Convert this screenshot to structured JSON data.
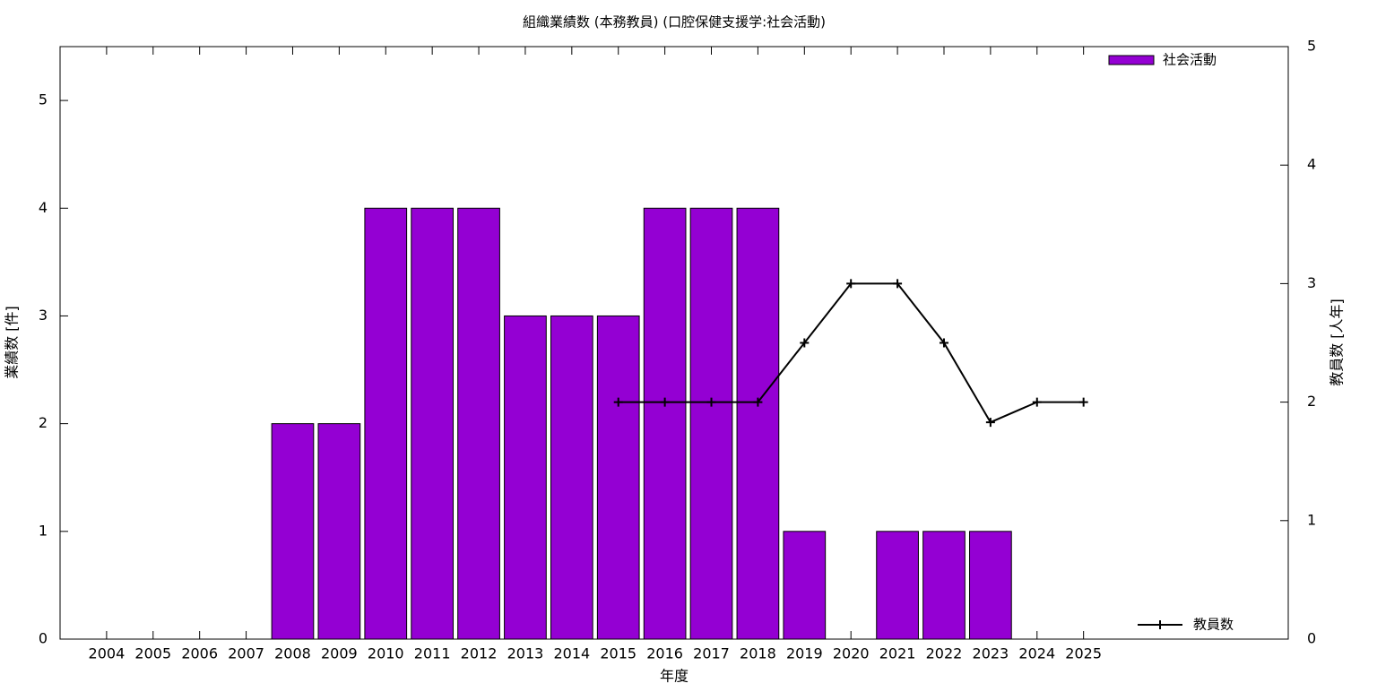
{
  "chart_data": {
    "type": "bar",
    "title": "組織業績数 (本務教員) (口腔保健支援学:社会活動)",
    "xlabel": "年度",
    "ylabel": "業績数 [件]",
    "y2label": "教員数 [人年]",
    "categories": [
      "2004",
      "2005",
      "2006",
      "2007",
      "2008",
      "2009",
      "2010",
      "2011",
      "2012",
      "2013",
      "2014",
      "2015",
      "2016",
      "2017",
      "2018",
      "2019",
      "2020",
      "2021",
      "2022",
      "2023",
      "2024",
      "2025"
    ],
    "series": [
      {
        "name": "社会活動",
        "type": "bar",
        "color": "#9400d3",
        "values": [
          0,
          0,
          0,
          0,
          2,
          2,
          4,
          4,
          4,
          3,
          3,
          3,
          4,
          4,
          4,
          1,
          0,
          1,
          1,
          1,
          0,
          0
        ]
      },
      {
        "name": "教員数",
        "type": "line",
        "axis": "y2",
        "color": "#000000",
        "values": [
          null,
          null,
          null,
          null,
          null,
          null,
          null,
          null,
          null,
          null,
          null,
          2,
          2,
          2,
          2,
          2.5,
          3,
          3,
          2.5,
          1.83,
          2,
          2
        ]
      }
    ],
    "ylim": [
      0,
      5.5
    ],
    "yticks": [
      0,
      1,
      2,
      3,
      4,
      5
    ],
    "y2lim": [
      0,
      5
    ],
    "y2ticks": [
      0,
      1,
      2,
      3,
      4,
      5
    ],
    "legend": {
      "bar": "top-right",
      "line": "bottom-right"
    }
  }
}
